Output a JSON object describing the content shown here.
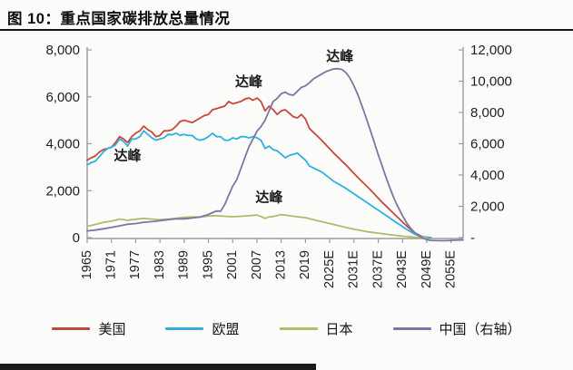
{
  "header": {
    "title": "图 10：重点国家碳排放总量情况"
  },
  "chart_data": {
    "type": "line",
    "title": "重点国家碳排放总量情况",
    "x_axis": {
      "range": [
        1965,
        2058
      ],
      "tick_step_years": 6,
      "tick_labels": [
        "1965",
        "1971",
        "1977",
        "1983",
        "1989",
        "1995",
        "2001",
        "2007",
        "2013",
        "2019",
        "2025E",
        "2031E",
        "2037E",
        "2043E",
        "2049E",
        "2055E"
      ],
      "tick_years": [
        1965,
        1971,
        1977,
        1983,
        1989,
        1995,
        2001,
        2007,
        2013,
        2019,
        2025,
        2031,
        2037,
        2043,
        2049,
        2055
      ]
    },
    "y_left": {
      "max": 8000,
      "tick_labels": [
        "8,000",
        "6,000",
        "4,000",
        "2,000",
        "0"
      ],
      "tick_values": [
        8000,
        6000,
        4000,
        2000,
        0
      ]
    },
    "y_right": {
      "max": 12000,
      "tick_labels": [
        "12,000",
        "10,000",
        "8,000",
        "6,000",
        "4,000",
        "2,000",
        "-"
      ],
      "tick_values": [
        12000,
        10000,
        8000,
        6000,
        4000,
        2000,
        0
      ]
    },
    "axis_color": "#9b9b9b",
    "series": [
      {
        "name": "美国",
        "axis": "left",
        "color": "#c7473d",
        "points": [
          [
            1965,
            3300
          ],
          [
            1966,
            3400
          ],
          [
            1967,
            3480
          ],
          [
            1968,
            3650
          ],
          [
            1969,
            3750
          ],
          [
            1970,
            3800
          ],
          [
            1971,
            3850
          ],
          [
            1972,
            4050
          ],
          [
            1973,
            4300
          ],
          [
            1974,
            4200
          ],
          [
            1975,
            4050
          ],
          [
            1976,
            4300
          ],
          [
            1977,
            4450
          ],
          [
            1978,
            4550
          ],
          [
            1979,
            4750
          ],
          [
            1980,
            4600
          ],
          [
            1981,
            4500
          ],
          [
            1982,
            4300
          ],
          [
            1983,
            4350
          ],
          [
            1984,
            4550
          ],
          [
            1985,
            4550
          ],
          [
            1986,
            4600
          ],
          [
            1987,
            4750
          ],
          [
            1988,
            4950
          ],
          [
            1989,
            5000
          ],
          [
            1990,
            4950
          ],
          [
            1991,
            4900
          ],
          [
            1992,
            5000
          ],
          [
            1993,
            5100
          ],
          [
            1994,
            5200
          ],
          [
            1995,
            5250
          ],
          [
            1996,
            5450
          ],
          [
            1997,
            5500
          ],
          [
            1998,
            5550
          ],
          [
            1999,
            5600
          ],
          [
            2000,
            5800
          ],
          [
            2001,
            5700
          ],
          [
            2002,
            5750
          ],
          [
            2003,
            5800
          ],
          [
            2004,
            5900
          ],
          [
            2005,
            5950
          ],
          [
            2006,
            5850
          ],
          [
            2007,
            5950
          ],
          [
            2008,
            5800
          ],
          [
            2009,
            5400
          ],
          [
            2010,
            5600
          ],
          [
            2011,
            5450
          ],
          [
            2012,
            5250
          ],
          [
            2013,
            5400
          ],
          [
            2014,
            5450
          ],
          [
            2015,
            5300
          ],
          [
            2016,
            5150
          ],
          [
            2017,
            5100
          ],
          [
            2018,
            5250
          ],
          [
            2019,
            5050
          ],
          [
            2020,
            4650
          ],
          [
            2023,
            4150
          ],
          [
            2026,
            3600
          ],
          [
            2029,
            3100
          ],
          [
            2032,
            2550
          ],
          [
            2035,
            2050
          ],
          [
            2038,
            1500
          ],
          [
            2041,
            1000
          ],
          [
            2044,
            500
          ],
          [
            2046,
            200
          ],
          [
            2048,
            30
          ],
          [
            2050,
            0
          ]
        ]
      },
      {
        "name": "欧盟",
        "axis": "left",
        "color": "#31b0e0",
        "points": [
          [
            1965,
            3100
          ],
          [
            1966,
            3200
          ],
          [
            1967,
            3250
          ],
          [
            1968,
            3450
          ],
          [
            1969,
            3650
          ],
          [
            1970,
            3800
          ],
          [
            1971,
            3850
          ],
          [
            1972,
            3950
          ],
          [
            1973,
            4200
          ],
          [
            1974,
            4100
          ],
          [
            1975,
            3900
          ],
          [
            1976,
            4200
          ],
          [
            1977,
            4200
          ],
          [
            1978,
            4300
          ],
          [
            1979,
            4550
          ],
          [
            1980,
            4400
          ],
          [
            1981,
            4250
          ],
          [
            1982,
            4150
          ],
          [
            1983,
            4200
          ],
          [
            1984,
            4250
          ],
          [
            1985,
            4400
          ],
          [
            1986,
            4380
          ],
          [
            1987,
            4450
          ],
          [
            1988,
            4350
          ],
          [
            1989,
            4400
          ],
          [
            1990,
            4350
          ],
          [
            1991,
            4350
          ],
          [
            1992,
            4200
          ],
          [
            1993,
            4150
          ],
          [
            1994,
            4200
          ],
          [
            1995,
            4300
          ],
          [
            1996,
            4450
          ],
          [
            1997,
            4300
          ],
          [
            1998,
            4300
          ],
          [
            1999,
            4150
          ],
          [
            2000,
            4150
          ],
          [
            2001,
            4250
          ],
          [
            2002,
            4200
          ],
          [
            2003,
            4300
          ],
          [
            2004,
            4300
          ],
          [
            2005,
            4250
          ],
          [
            2006,
            4300
          ],
          [
            2007,
            4250
          ],
          [
            2008,
            4150
          ],
          [
            2009,
            3800
          ],
          [
            2010,
            3900
          ],
          [
            2011,
            3750
          ],
          [
            2012,
            3700
          ],
          [
            2013,
            3550
          ],
          [
            2014,
            3400
          ],
          [
            2015,
            3500
          ],
          [
            2016,
            3550
          ],
          [
            2017,
            3600
          ],
          [
            2018,
            3450
          ],
          [
            2019,
            3300
          ],
          [
            2020,
            3050
          ],
          [
            2023,
            2800
          ],
          [
            2026,
            2400
          ],
          [
            2029,
            2100
          ],
          [
            2032,
            1750
          ],
          [
            2035,
            1400
          ],
          [
            2038,
            1050
          ],
          [
            2041,
            700
          ],
          [
            2044,
            350
          ],
          [
            2046,
            150
          ],
          [
            2048,
            20
          ],
          [
            2050,
            0
          ]
        ]
      },
      {
        "name": "日本",
        "axis": "left",
        "color": "#a9bf6b",
        "points": [
          [
            1965,
            480
          ],
          [
            1967,
            560
          ],
          [
            1969,
            650
          ],
          [
            1971,
            700
          ],
          [
            1973,
            790
          ],
          [
            1975,
            740
          ],
          [
            1977,
            780
          ],
          [
            1979,
            820
          ],
          [
            1981,
            790
          ],
          [
            1983,
            770
          ],
          [
            1985,
            790
          ],
          [
            1987,
            820
          ],
          [
            1989,
            860
          ],
          [
            1991,
            880
          ],
          [
            1993,
            870
          ],
          [
            1995,
            920
          ],
          [
            1997,
            930
          ],
          [
            1999,
            910
          ],
          [
            2001,
            890
          ],
          [
            2003,
            910
          ],
          [
            2005,
            930
          ],
          [
            2007,
            960
          ],
          [
            2008,
            900
          ],
          [
            2009,
            820
          ],
          [
            2010,
            880
          ],
          [
            2011,
            900
          ],
          [
            2012,
            940
          ],
          [
            2013,
            980
          ],
          [
            2014,
            960
          ],
          [
            2015,
            930
          ],
          [
            2016,
            910
          ],
          [
            2017,
            890
          ],
          [
            2019,
            850
          ],
          [
            2022,
            720
          ],
          [
            2025,
            600
          ],
          [
            2028,
            470
          ],
          [
            2031,
            360
          ],
          [
            2034,
            260
          ],
          [
            2037,
            190
          ],
          [
            2040,
            120
          ],
          [
            2043,
            60
          ],
          [
            2046,
            15
          ],
          [
            2049,
            0
          ]
        ]
      },
      {
        "name": "中国（右轴）",
        "axis": "right",
        "color": "#7b77a5",
        "points": [
          [
            1965,
            430
          ],
          [
            1967,
            480
          ],
          [
            1969,
            560
          ],
          [
            1971,
            650
          ],
          [
            1973,
            750
          ],
          [
            1975,
            850
          ],
          [
            1977,
            900
          ],
          [
            1979,
            980
          ],
          [
            1981,
            1020
          ],
          [
            1983,
            1080
          ],
          [
            1985,
            1150
          ],
          [
            1987,
            1200
          ],
          [
            1989,
            1200
          ],
          [
            1991,
            1250
          ],
          [
            1993,
            1320
          ],
          [
            1995,
            1480
          ],
          [
            1996,
            1600
          ],
          [
            1997,
            1700
          ],
          [
            1998,
            1680
          ],
          [
            1999,
            2100
          ],
          [
            2000,
            2700
          ],
          [
            2001,
            3300
          ],
          [
            2002,
            3700
          ],
          [
            2003,
            4400
          ],
          [
            2004,
            5100
          ],
          [
            2005,
            5800
          ],
          [
            2006,
            6300
          ],
          [
            2007,
            6800
          ],
          [
            2008,
            7100
          ],
          [
            2009,
            7500
          ],
          [
            2010,
            8100
          ],
          [
            2011,
            8700
          ],
          [
            2012,
            8900
          ],
          [
            2013,
            9200
          ],
          [
            2014,
            9300
          ],
          [
            2015,
            9150
          ],
          [
            2016,
            9100
          ],
          [
            2017,
            9350
          ],
          [
            2018,
            9600
          ],
          [
            2019,
            9700
          ],
          [
            2020,
            9900
          ],
          [
            2021,
            10150
          ],
          [
            2022,
            10300
          ],
          [
            2023,
            10450
          ],
          [
            2024,
            10600
          ],
          [
            2025,
            10700
          ],
          [
            2026,
            10780
          ],
          [
            2027,
            10800
          ],
          [
            2028,
            10750
          ],
          [
            2029,
            10550
          ],
          [
            2030,
            10200
          ],
          [
            2031,
            9700
          ],
          [
            2032,
            9100
          ],
          [
            2033,
            8400
          ],
          [
            2034,
            7650
          ],
          [
            2035,
            6900
          ],
          [
            2036,
            6100
          ],
          [
            2037,
            5300
          ],
          [
            2038,
            4550
          ],
          [
            2039,
            3800
          ],
          [
            2040,
            3100
          ],
          [
            2041,
            2450
          ],
          [
            2042,
            1900
          ],
          [
            2043,
            1400
          ],
          [
            2044,
            950
          ],
          [
            2045,
            600
          ],
          [
            2046,
            330
          ],
          [
            2047,
            130
          ],
          [
            2048,
            -30
          ],
          [
            2049,
            -130
          ],
          [
            2050,
            -180
          ],
          [
            2052,
            -200
          ],
          [
            2054,
            -190
          ],
          [
            2056,
            -170
          ],
          [
            2058,
            -150
          ]
        ]
      }
    ],
    "annotations": [
      {
        "text": "达峰",
        "year": 1975,
        "value": 3300,
        "axis": "left"
      },
      {
        "text": "达峰",
        "year": 2005,
        "value": 6450,
        "axis": "left"
      },
      {
        "text": "达峰",
        "year": 2027.5,
        "value": 11300,
        "axis": "right"
      },
      {
        "text": "达峰",
        "year": 2010,
        "value": 1520,
        "axis": "left"
      }
    ],
    "legend_position": "bottom"
  }
}
